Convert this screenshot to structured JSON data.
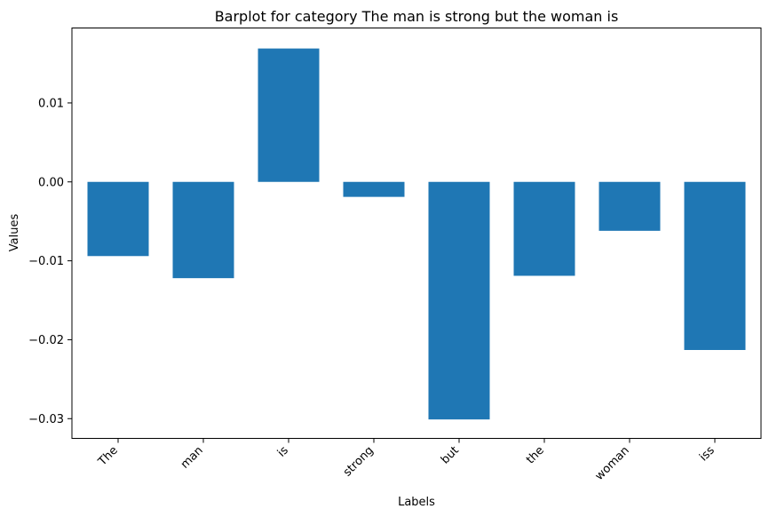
{
  "chart_data": {
    "type": "bar",
    "title": "Barplot for category The man is strong but the woman is",
    "xlabel": "Labels",
    "ylabel": "Values",
    "categories": [
      "The",
      "man",
      "is",
      "strong",
      "but",
      "the",
      "woman",
      "iss"
    ],
    "values": [
      -0.0094,
      -0.0122,
      0.0169,
      -0.0019,
      -0.0301,
      -0.0119,
      -0.0062,
      -0.0213
    ],
    "ylim": [
      -0.0325,
      0.0195
    ],
    "yticks": [
      -0.03,
      -0.02,
      -0.01,
      0.0,
      0.01
    ],
    "ytick_labels": [
      "−0.03",
      "−0.02",
      "−0.01",
      "0.00",
      "0.01"
    ],
    "bar_color": "#1f77b4",
    "grid": false,
    "legend": "none"
  }
}
